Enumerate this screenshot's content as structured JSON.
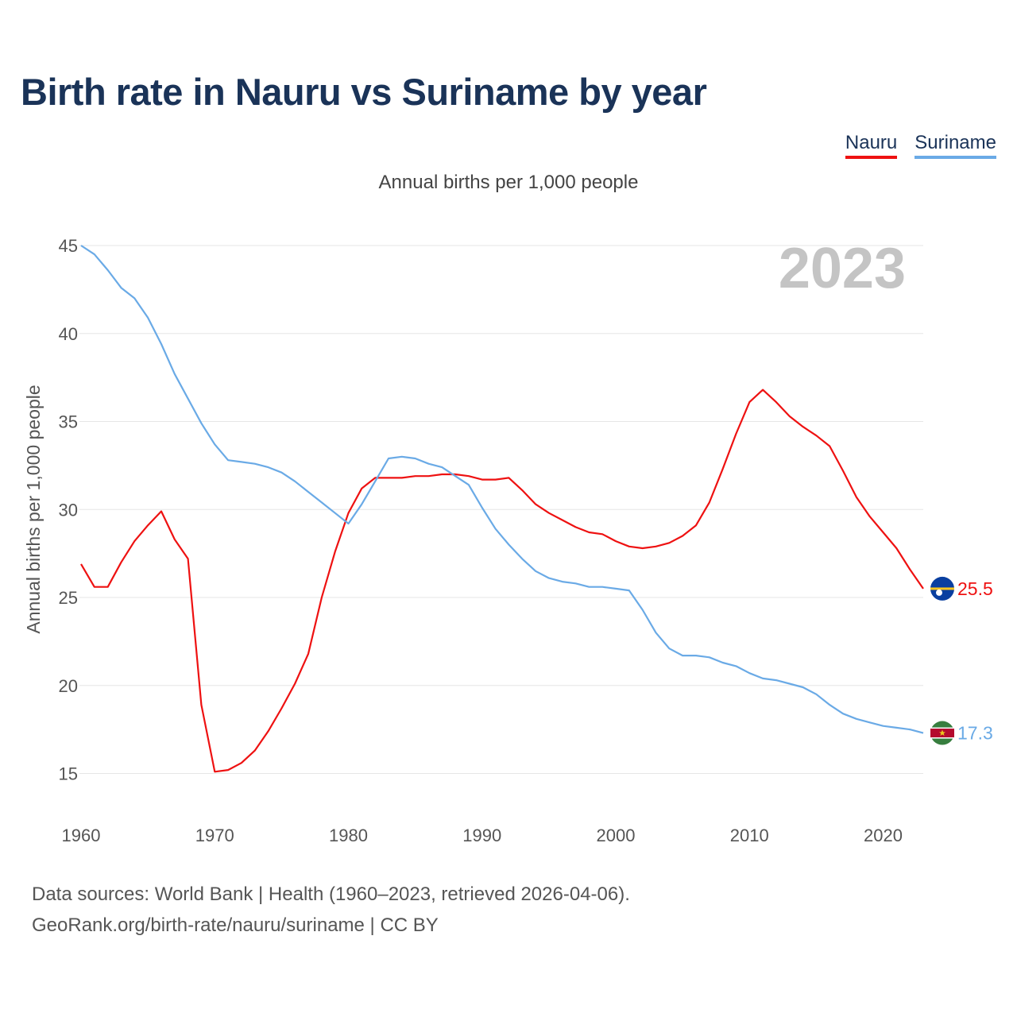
{
  "title": "Birth rate in Nauru vs Suriname by year",
  "subtitle": "Annual births per 1,000 people",
  "year_label": "2023",
  "legend": [
    {
      "name": "Nauru",
      "color": "#ee1111"
    },
    {
      "name": "Suriname",
      "color": "#6aaae6"
    }
  ],
  "footer": {
    "line1": "Data sources: World Bank | Health (1960–2023, retrieved 2026-04-06).",
    "line2": "GeoRank.org/birth-rate/nauru/suriname | CC BY"
  },
  "chart_data": {
    "type": "line",
    "title": "Birth rate in Nauru vs Suriname by year",
    "ylabel": "Annual births per 1,000 people",
    "xlabel": "",
    "xlim": [
      1960,
      2023
    ],
    "ylim": [
      13,
      46
    ],
    "x_ticks": [
      1960,
      1970,
      1980,
      1990,
      2000,
      2010,
      2020
    ],
    "y_ticks": [
      15,
      20,
      25,
      30,
      35,
      40,
      45
    ],
    "x": [
      1960,
      1961,
      1962,
      1963,
      1964,
      1965,
      1966,
      1967,
      1968,
      1969,
      1970,
      1971,
      1972,
      1973,
      1974,
      1975,
      1976,
      1977,
      1978,
      1979,
      1980,
      1981,
      1982,
      1983,
      1984,
      1985,
      1986,
      1987,
      1988,
      1989,
      1990,
      1991,
      1992,
      1993,
      1994,
      1995,
      1996,
      1997,
      1998,
      1999,
      2000,
      2001,
      2002,
      2003,
      2004,
      2005,
      2006,
      2007,
      2008,
      2009,
      2010,
      2011,
      2012,
      2013,
      2014,
      2015,
      2016,
      2017,
      2018,
      2019,
      2020,
      2021,
      2022,
      2023
    ],
    "series": [
      {
        "name": "Nauru",
        "color": "#ee1111",
        "end_label": "25.5",
        "values": [
          26.9,
          25.6,
          25.6,
          27.0,
          28.2,
          29.1,
          29.9,
          28.3,
          27.2,
          18.9,
          15.1,
          15.2,
          15.6,
          16.3,
          17.4,
          18.7,
          20.1,
          21.8,
          25.0,
          27.6,
          29.8,
          31.2,
          31.8,
          31.8,
          31.8,
          31.9,
          31.9,
          32.0,
          32.0,
          31.9,
          31.7,
          31.7,
          31.8,
          31.1,
          30.3,
          29.8,
          29.4,
          29.0,
          28.7,
          28.6,
          28.2,
          27.9,
          27.8,
          27.9,
          28.1,
          28.5,
          29.1,
          30.4,
          32.3,
          34.3,
          36.1,
          36.8,
          36.1,
          35.3,
          34.7,
          34.2,
          33.6,
          32.2,
          30.7,
          29.6,
          28.7,
          27.8,
          26.6,
          25.5
        ]
      },
      {
        "name": "Suriname",
        "color": "#6aaae6",
        "end_label": "17.3",
        "values": [
          45.0,
          44.5,
          43.6,
          42.6,
          42.0,
          40.9,
          39.4,
          37.7,
          36.3,
          34.9,
          33.7,
          32.8,
          32.7,
          32.6,
          32.4,
          32.1,
          31.6,
          31.0,
          30.4,
          29.8,
          29.2,
          30.3,
          31.6,
          32.9,
          33.0,
          32.9,
          32.6,
          32.4,
          31.9,
          31.4,
          30.1,
          28.9,
          28.0,
          27.2,
          26.5,
          26.1,
          25.9,
          25.8,
          25.6,
          25.6,
          25.5,
          25.4,
          24.3,
          23.0,
          22.1,
          21.7,
          21.7,
          21.6,
          21.3,
          21.1,
          20.7,
          20.4,
          20.3,
          20.1,
          19.9,
          19.5,
          18.9,
          18.4,
          18.1,
          17.9,
          17.7,
          17.6,
          17.5,
          17.3
        ]
      }
    ]
  }
}
